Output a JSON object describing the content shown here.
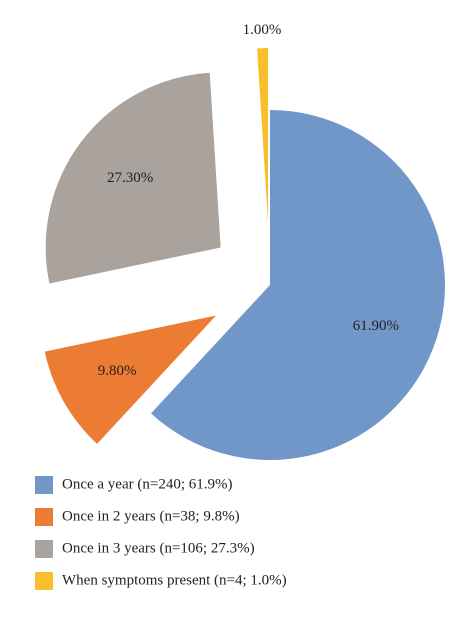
{
  "chart_data": {
    "type": "pie",
    "categories": [
      "Once a year (n=240; 61.9%)",
      "Once in 2 years (n=38; 9.8%)",
      "Once in 3 years (n=106; 27.3%)",
      "When symptoms present (n=4; 1.0%)"
    ],
    "values": [
      61.9,
      9.8,
      27.3,
      1.0
    ],
    "value_labels": [
      "61.90%",
      "9.80%",
      "27.30%",
      "1.00%"
    ],
    "colors": [
      "#7197c9",
      "#ec7b33",
      "#aaa29c",
      "#f9be2c"
    ]
  }
}
